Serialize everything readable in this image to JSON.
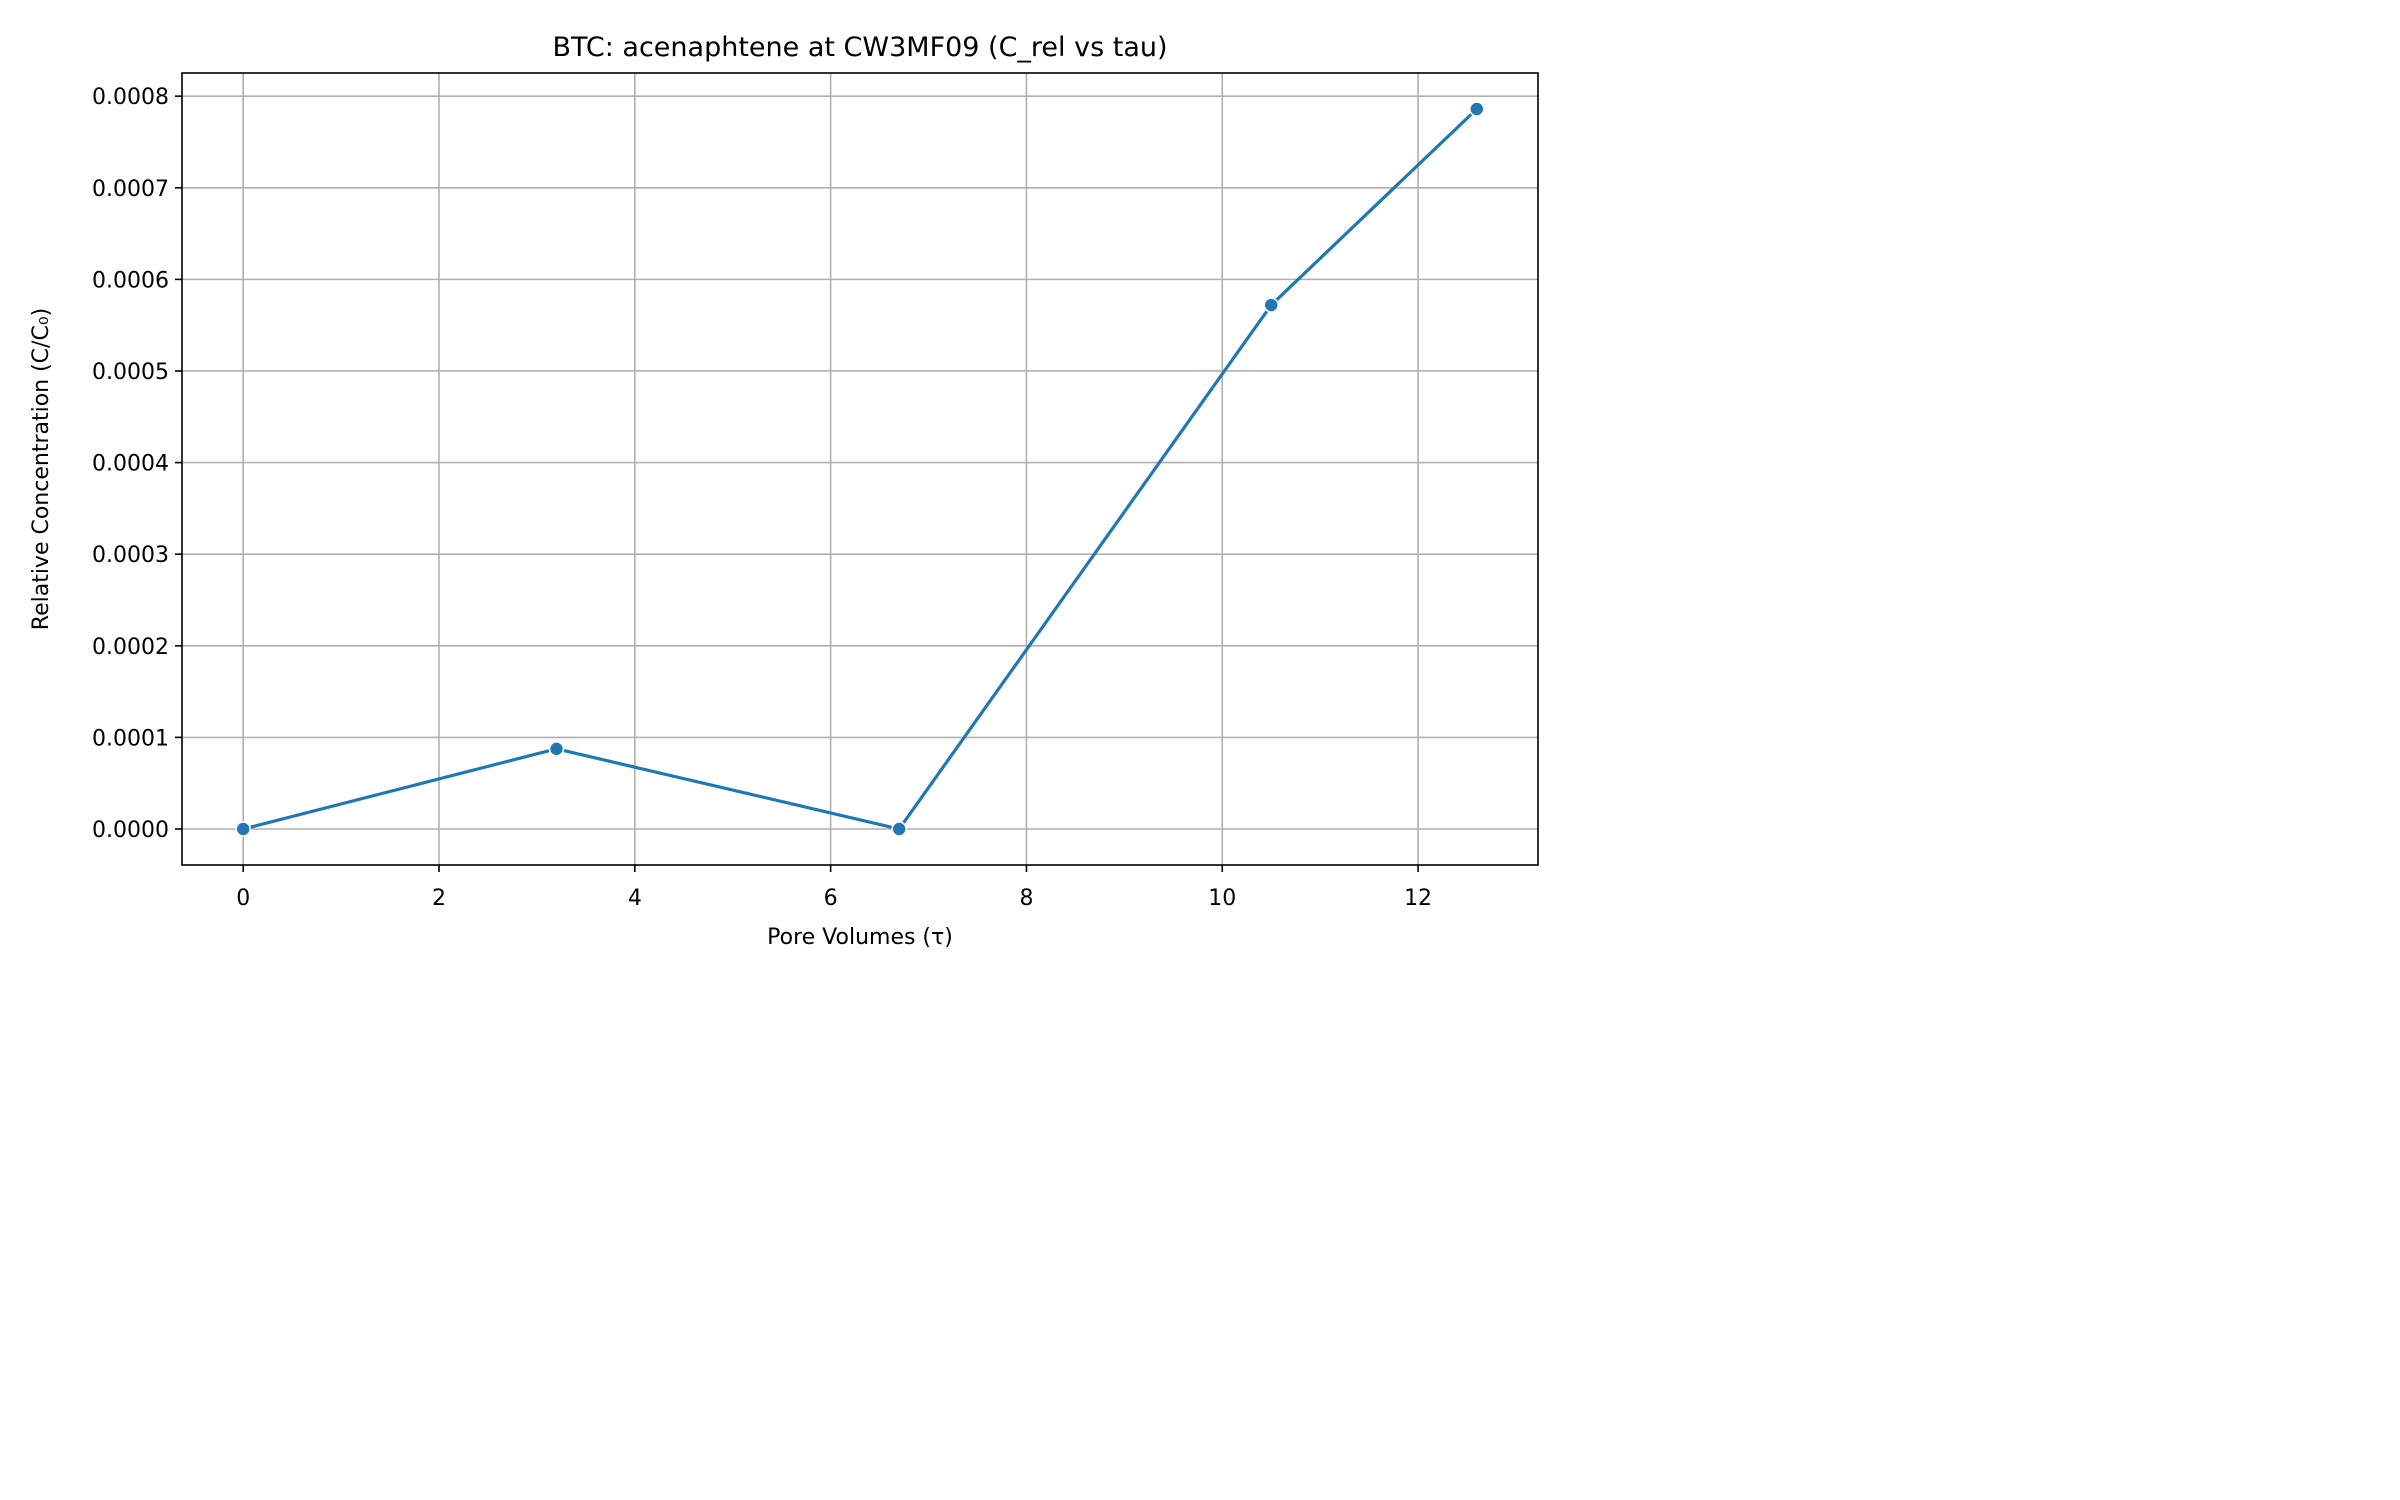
{
  "chart_data": {
    "type": "line",
    "title": "BTC: acenaphtene at CW3MF09 (C_rel vs tau)",
    "xlabel": "Pore Volumes (τ)",
    "ylabel": "Relative Concentration (C/C₀)",
    "xlim": [
      -0.625,
      13.225
    ],
    "ylim": [
      -3.93e-05,
      0.0008253
    ],
    "xticks": [
      0,
      2,
      4,
      6,
      8,
      10,
      12
    ],
    "xtick_labels": [
      "0",
      "2",
      "4",
      "6",
      "8",
      "10",
      "12"
    ],
    "yticks": [
      0,
      0.0001,
      0.0002,
      0.0003,
      0.0004,
      0.0005,
      0.0006,
      0.0007,
      0.0008
    ],
    "ytick_labels": [
      "0.0000",
      "0.0001",
      "0.0002",
      "0.0003",
      "0.0004",
      "0.0005",
      "0.0006",
      "0.0007",
      "0.0008"
    ],
    "grid": true,
    "legend": false,
    "series": [
      {
        "color": "#1f77b4",
        "marker": "circle",
        "x": [
          0,
          3.2,
          6.7,
          10.5,
          12.6
        ],
        "y": [
          0,
          8.75e-05,
          0,
          0.000572,
          0.000786
        ]
      }
    ]
  }
}
